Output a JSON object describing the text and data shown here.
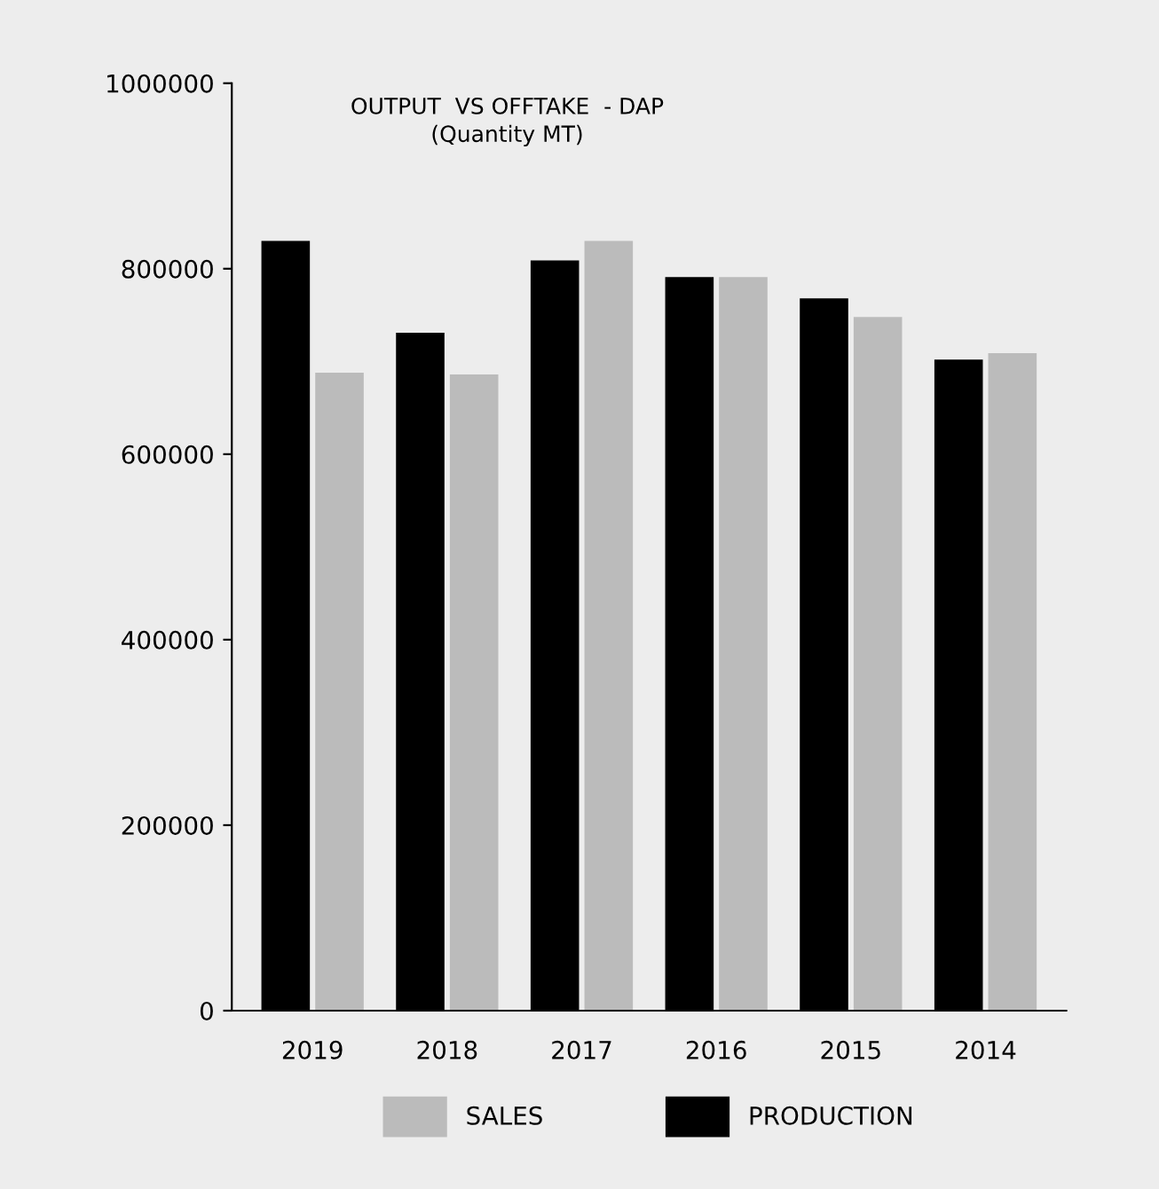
{
  "chart_data": {
    "type": "bar",
    "title": "OUTPUT  VS OFFTAKE  - DAP",
    "subtitle": "(Quantity MT)",
    "categories": [
      "2019",
      "2018",
      "2017",
      "2016",
      "2015",
      "2014"
    ],
    "series": [
      {
        "name": "PRODUCTION",
        "color": "#000000",
        "values": [
          830000,
          731000,
          809000,
          791000,
          768000,
          702000
        ]
      },
      {
        "name": "SALES",
        "color": "#bbbbbb",
        "values": [
          688000,
          686000,
          830000,
          791000,
          748000,
          709000
        ]
      }
    ],
    "ylim": [
      0,
      1000000
    ],
    "yticks": [
      0,
      200000,
      400000,
      600000,
      800000,
      1000000
    ],
    "grid": false,
    "legend": "bottom"
  }
}
